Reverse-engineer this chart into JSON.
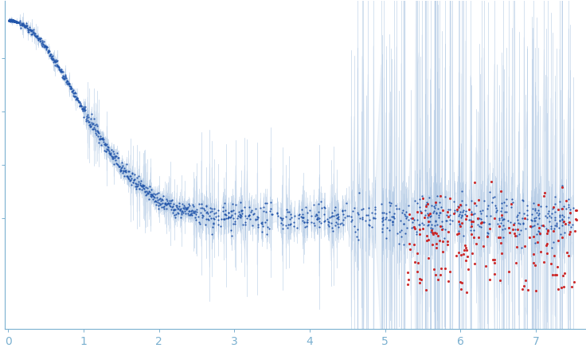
{
  "background_color": "#ffffff",
  "dot_color_main": "#2255aa",
  "dot_color_outlier": "#cc2222",
  "error_color": "#b0c8e4",
  "axis_color": "#7ab0d0",
  "tick_color": "#7ab0d0",
  "label_color": "#7ab0d0",
  "xlim": [
    -0.05,
    7.65
  ],
  "ylim": [
    -0.52,
    1.02
  ],
  "xticks": [
    0,
    1,
    2,
    3,
    4,
    5,
    6,
    7
  ],
  "seed": 42,
  "I0": 0.93,
  "Rg": 1.35,
  "n_low": 80,
  "n_mid": 500,
  "n_high_blue": 600,
  "n_outlier": 200
}
